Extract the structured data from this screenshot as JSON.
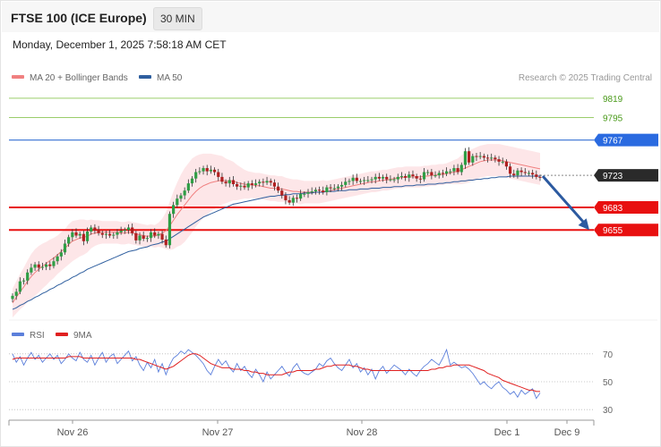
{
  "header": {
    "title": "FTSE 100 (ICE Europe)",
    "timeframe": "30 MIN",
    "timestamp": "Monday, December 1, 2025 7:58:18 AM CET"
  },
  "legend": {
    "ma20": "MA 20 + Bollinger Bands",
    "ma50": "MA 50",
    "rsi": "RSI",
    "rsi_ma": "9MA"
  },
  "credit": "Research © 2025 Trading Central",
  "colors": {
    "ma20": "#f08080",
    "ma50": "#2f5f9f",
    "rsi": "#5b7fdb",
    "rsi_ma": "#e02020",
    "resistance_line": "#9acd6a",
    "support_line": "#e81010",
    "current_tag": "#2a2a2a",
    "forecast_arrow": "#2c5aa0"
  },
  "chart_data": [
    {
      "type": "line",
      "subtype": "candlestick",
      "x_ticks": [
        "Nov 26",
        "Nov 27",
        "Nov 28",
        "Dec 1",
        "Dec 9"
      ],
      "ylim": [
        9545,
        9830
      ],
      "levels": [
        {
          "value": 9819,
          "label": "9819",
          "kind": "resistance"
        },
        {
          "value": 9795,
          "label": "9795",
          "kind": "resistance"
        },
        {
          "value": 9767,
          "label": "9767",
          "kind": "pivot"
        },
        {
          "value": 9723,
          "label": "9723",
          "kind": "current"
        },
        {
          "value": 9683,
          "label": "9683",
          "kind": "support"
        },
        {
          "value": 9655,
          "label": "9655",
          "kind": "support"
        }
      ],
      "price_close": [
        9573,
        9578,
        9591,
        9592,
        9602,
        9608,
        9612,
        9608,
        9609,
        9612,
        9610,
        9616,
        9622,
        9627,
        9638,
        9646,
        9652,
        9648,
        9650,
        9641,
        9653,
        9658,
        9655,
        9651,
        9649,
        9650,
        9648,
        9649,
        9652,
        9654,
        9655,
        9658,
        9651,
        9642,
        9648,
        9644,
        9645,
        9652,
        9648,
        9650,
        9643,
        9636,
        9675,
        9686,
        9694,
        9698,
        9704,
        9713,
        9719,
        9727,
        9728,
        9732,
        9728,
        9730,
        9727,
        9721,
        9715,
        9713,
        9717,
        9712,
        9709,
        9710,
        9708,
        9713,
        9711,
        9713,
        9715,
        9714,
        9716,
        9714,
        9709,
        9704,
        9698,
        9692,
        9689,
        9695,
        9694,
        9700,
        9700,
        9702,
        9703,
        9705,
        9704,
        9702,
        9708,
        9707,
        9707,
        9709,
        9711,
        9715,
        9716,
        9720,
        9716,
        9716,
        9717,
        9717,
        9718,
        9721,
        9719,
        9721,
        9718,
        9718,
        9718,
        9721,
        9722,
        9720,
        9724,
        9722,
        9719,
        9718,
        9727,
        9727,
        9723,
        9723,
        9726,
        9725,
        9728,
        9728,
        9732,
        9727,
        9736,
        9753,
        9739,
        9747,
        9746,
        9747,
        9745,
        9744,
        9745,
        9743,
        9740,
        9740,
        9734,
        9725,
        9723,
        9729,
        9727,
        9726,
        9726,
        9724,
        9721,
        9720
      ],
      "ma20": [
        9564,
        9571,
        9578,
        9584,
        9591,
        9597,
        9602,
        9606,
        9610,
        9613,
        9617,
        9620,
        9624,
        9628,
        9632,
        9637,
        9641,
        9643,
        9645,
        9646,
        9647,
        9650,
        9651,
        9652,
        9652,
        9652,
        9652,
        9652,
        9652,
        9651,
        9651,
        9652,
        9651,
        9650,
        9649,
        9648,
        9647,
        9648,
        9647,
        9649,
        9651,
        9654,
        9660,
        9667,
        9674,
        9680,
        9686,
        9692,
        9698,
        9703,
        9707,
        9710,
        9712,
        9714,
        9715,
        9716,
        9717,
        9716,
        9716,
        9716,
        9714,
        9713,
        9712,
        9711,
        9711,
        9710,
        9710,
        9709,
        9708,
        9707,
        9707,
        9706,
        9706,
        9705,
        9704,
        9703,
        9703,
        9702,
        9702,
        9702,
        9702,
        9702,
        9702,
        9703,
        9703,
        9704,
        9705,
        9706,
        9707,
        9708,
        9709,
        9710,
        9711,
        9712,
        9713,
        9714,
        9715,
        9715,
        9716,
        9717,
        9717,
        9718,
        9719,
        9720,
        9720,
        9721,
        9721,
        9721,
        9721,
        9721,
        9722,
        9722,
        9723,
        9723,
        9724,
        9724,
        9725,
        9726,
        9727,
        9728,
        9730,
        9732,
        9734,
        9736,
        9738,
        9740,
        9741,
        9742,
        9742,
        9742,
        9742,
        9741,
        9740,
        9739,
        9738,
        9737,
        9736,
        9735,
        9734,
        9733,
        9732,
        9731
      ],
      "ma50": [
        9556,
        9558,
        9561,
        9563,
        9566,
        9568,
        9571,
        9573,
        9576,
        9578,
        9581,
        9583,
        9586,
        9588,
        9591,
        9593,
        9596,
        9598,
        9601,
        9603,
        9606,
        9608,
        9610,
        9612,
        9614,
        9616,
        9618,
        9620,
        9622,
        9624,
        9626,
        9628,
        9629,
        9630,
        9632,
        9633,
        9634,
        9636,
        9637,
        9638,
        9640,
        9641,
        9644,
        9647,
        9650,
        9653,
        9656,
        9659,
        9662,
        9665,
        9668,
        9671,
        9673,
        9675,
        9677,
        9679,
        9681,
        9683,
        9685,
        9687,
        9688,
        9689,
        9690,
        9691,
        9692,
        9693,
        9694,
        9695,
        9696,
        9697,
        9697,
        9698,
        9698,
        9699,
        9699,
        9700,
        9700,
        9700,
        9701,
        9701,
        9701,
        9702,
        9702,
        9702,
        9703,
        9703,
        9703,
        9704,
        9704,
        9704,
        9705,
        9705,
        9705,
        9706,
        9706,
        9706,
        9707,
        9707,
        9707,
        9708,
        9708,
        9708,
        9709,
        9709,
        9709,
        9710,
        9710,
        9710,
        9711,
        9711,
        9711,
        9712,
        9712,
        9712,
        9713,
        9713,
        9714,
        9714,
        9715,
        9715,
        9716,
        9716,
        9717,
        9717,
        9718,
        9718,
        9719,
        9719,
        9720,
        9720,
        9721,
        9721,
        9721,
        9722,
        9722,
        9722,
        9722,
        9722,
        9722,
        9722,
        9722,
        9722
      ],
      "bollinger_width": [
        18,
        20,
        22,
        24,
        26,
        28,
        29,
        29,
        28,
        27,
        26,
        25,
        24,
        24,
        24,
        25,
        25,
        24,
        23,
        22,
        20,
        18,
        16,
        15,
        14,
        14,
        14,
        14,
        14,
        14,
        14,
        14,
        14,
        14,
        14,
        14,
        14,
        14,
        14,
        15,
        18,
        23,
        30,
        36,
        40,
        44,
        46,
        46,
        46,
        44,
        42,
        40,
        38,
        36,
        34,
        32,
        30,
        28,
        26,
        24,
        22,
        20,
        18,
        17,
        16,
        16,
        16,
        16,
        16,
        16,
        16,
        16,
        16,
        15,
        15,
        15,
        15,
        15,
        14,
        14,
        14,
        14,
        14,
        14,
        13,
        13,
        13,
        13,
        13,
        13,
        13,
        13,
        13,
        13,
        13,
        13,
        13,
        13,
        13,
        13,
        13,
        13,
        13,
        13,
        13,
        13,
        13,
        13,
        13,
        13,
        13,
        13,
        13,
        13,
        13,
        13,
        13,
        14,
        15,
        16,
        18,
        19,
        20,
        20,
        20,
        20,
        20,
        20,
        20,
        20,
        20,
        20,
        20,
        20,
        20,
        20,
        20,
        20,
        20,
        20,
        20,
        20
      ]
    },
    {
      "type": "line",
      "title": "RSI",
      "ylim": [
        25,
        75
      ],
      "y_ticks": [
        30,
        50,
        70
      ],
      "rsi": [
        70,
        64,
        68,
        62,
        67,
        71,
        66,
        69,
        64,
        67,
        70,
        66,
        69,
        63,
        66,
        70,
        67,
        65,
        71,
        66,
        64,
        69,
        62,
        67,
        71,
        64,
        68,
        70,
        63,
        66,
        69,
        72,
        65,
        68,
        62,
        58,
        64,
        60,
        66,
        57,
        63,
        55,
        62,
        67,
        69,
        72,
        70,
        73,
        71,
        69,
        66,
        63,
        58,
        55,
        61,
        66,
        62,
        65,
        60,
        57,
        63,
        58,
        61,
        56,
        53,
        59,
        55,
        50,
        57,
        52,
        55,
        58,
        61,
        57,
        54,
        60,
        63,
        58,
        56,
        55,
        57,
        59,
        63,
        61,
        65,
        67,
        63,
        60,
        58,
        62,
        66,
        60,
        63,
        57,
        60,
        55,
        59,
        52,
        58,
        61,
        56,
        59,
        62,
        60,
        58,
        55,
        59,
        56,
        54,
        58,
        61,
        63,
        66,
        64,
        62,
        67,
        73,
        62,
        64,
        62,
        60,
        61,
        59,
        56,
        52,
        48,
        50,
        47,
        45,
        48,
        50,
        46,
        44,
        41,
        43,
        39,
        44,
        41,
        43,
        45,
        38,
        42
      ],
      "ma9": [
        66,
        67,
        67,
        67,
        67,
        67,
        67,
        67,
        67,
        67,
        67,
        67,
        67,
        67,
        67,
        68,
        68,
        68,
        68,
        67,
        67,
        67,
        67,
        67,
        67,
        67,
        67,
        67,
        67,
        67,
        67,
        67,
        67,
        66,
        66,
        65,
        64,
        63,
        62,
        61,
        60,
        59,
        60,
        61,
        63,
        65,
        67,
        69,
        70,
        70,
        69,
        67,
        65,
        63,
        62,
        61,
        60,
        60,
        60,
        59,
        59,
        59,
        58,
        58,
        57,
        57,
        56,
        56,
        55,
        55,
        55,
        55,
        55,
        56,
        57,
        57,
        58,
        58,
        58,
        58,
        58,
        59,
        59,
        60,
        61,
        61,
        62,
        62,
        62,
        62,
        62,
        61,
        61,
        60,
        59,
        59,
        58,
        58,
        58,
        58,
        58,
        58,
        58,
        58,
        58,
        58,
        58,
        58,
        58,
        58,
        58,
        58,
        59,
        59,
        60,
        60,
        61,
        61,
        62,
        62,
        62,
        62,
        62,
        61,
        60,
        59,
        58,
        56,
        55,
        54,
        53,
        51,
        50,
        49,
        48,
        47,
        46,
        45,
        44,
        44,
        43,
        43
      ]
    }
  ]
}
